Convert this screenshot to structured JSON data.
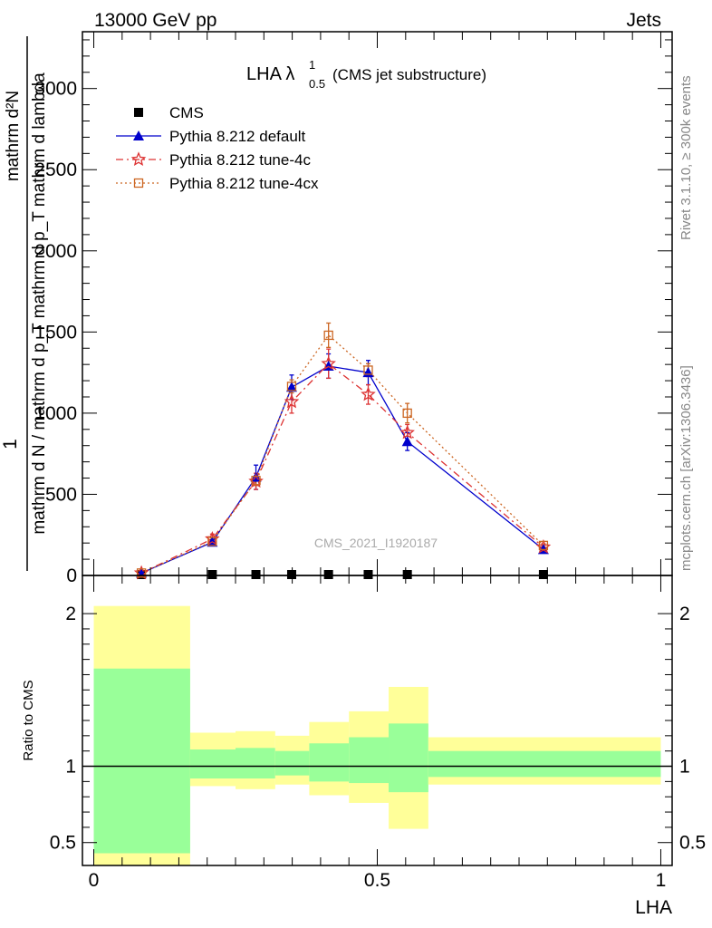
{
  "header": {
    "energy_label": "13000 GeV pp",
    "process_label": "Jets"
  },
  "side_labels": {
    "rivet": "Rivet 3.1.10, ≥ 300k events",
    "mcplots": "mcplots.cern.ch [arXiv:1306.3436]"
  },
  "watermark": "CMS_2021_I1920187",
  "colors": {
    "cms": "#000000",
    "default": "#0000cc",
    "tune4c": "#dd3333",
    "tune4cx": "#cc6622",
    "band_inner": "#99ff99",
    "band_outer": "#ffff99"
  },
  "chart_data": [
    {
      "type": "line",
      "title": "LHA λ",
      "title_sup": "1",
      "title_sub": "0.5",
      "title_suffix": "(CMS jet substructure)",
      "ylabel_top": "1",
      "ylabel_num": "mathrm d²N",
      "ylabel_den": "mathrm d N / mathrm d p_T mathrm d p_T mathrm d lambda",
      "xlim": [
        -0.02,
        1.02
      ],
      "ylim": [
        0,
        3350
      ],
      "y_ticks": [
        {
          "value": 0,
          "label": "0"
        },
        {
          "value": 500,
          "label": "500"
        },
        {
          "value": 1000,
          "label": "1000"
        },
        {
          "value": 1500,
          "label": "1500"
        },
        {
          "value": 2000,
          "label": "2000"
        },
        {
          "value": 2500,
          "label": "2500"
        },
        {
          "value": 3000,
          "label": "3000"
        }
      ],
      "legend": [
        {
          "key": "cms",
          "label": "CMS"
        },
        {
          "key": "default",
          "label": "Pythia 8.212 default"
        },
        {
          "key": "tune4c",
          "label": "Pythia 8.212 tune-4c"
        },
        {
          "key": "tune4cx",
          "label": "Pythia 8.212 tune-4cx"
        }
      ],
      "series": [
        {
          "name": "CMS",
          "key": "cms",
          "x": [
            0.084,
            0.209,
            0.286,
            0.349,
            0.414,
            0.484,
            0.553,
            0.793
          ],
          "values": [
            0,
            0,
            0,
            0,
            0,
            0,
            0,
            0
          ]
        },
        {
          "name": "Pythia 8.212 default",
          "key": "default",
          "x": [
            0.084,
            0.209,
            0.286,
            0.349,
            0.414,
            0.484,
            0.553,
            0.793
          ],
          "values": [
            15,
            205,
            605,
            1160,
            1290,
            1250,
            825,
            160
          ],
          "errors": [
            5,
            15,
            75,
            75,
            75,
            75,
            55,
            10
          ]
        },
        {
          "name": "Pythia 8.212 tune-4c",
          "key": "tune4c",
          "x": [
            0.084,
            0.209,
            0.286,
            0.349,
            0.414,
            0.484,
            0.553,
            0.793
          ],
          "values": [
            15,
            225,
            580,
            1070,
            1305,
            1115,
            880,
            175
          ],
          "errors": [
            5,
            30,
            50,
            70,
            90,
            60,
            50,
            10
          ]
        },
        {
          "name": "Pythia 8.212 tune-4cx",
          "key": "tune4cx",
          "x": [
            0.084,
            0.209,
            0.286,
            0.349,
            0.414,
            0.484,
            0.553,
            0.793
          ],
          "values": [
            15,
            210,
            585,
            1165,
            1480,
            1265,
            1000,
            185
          ],
          "errors": [
            5,
            20,
            30,
            40,
            75,
            40,
            60,
            10
          ]
        }
      ]
    },
    {
      "type": "area",
      "ylabel": "Ratio to CMS",
      "xlabel": "LHA",
      "xlim": [
        -0.02,
        1.02
      ],
      "ylim": [
        0.35,
        2.25
      ],
      "y_ticks": [
        {
          "value": 0.5,
          "label": "0.5"
        },
        {
          "value": 1,
          "label": "1"
        },
        {
          "value": 2,
          "label": "2"
        }
      ],
      "x_ticks": [
        {
          "value": 0,
          "label": "0"
        },
        {
          "value": 0.5,
          "label": "0.5"
        },
        {
          "value": 1,
          "label": "1"
        }
      ],
      "bins": [
        {
          "lo": 0.0,
          "hi": 0.17,
          "inner": [
            0.43,
            1.64
          ],
          "outer": [
            0.3,
            2.05
          ]
        },
        {
          "lo": 0.17,
          "hi": 0.25,
          "inner": [
            0.92,
            1.11
          ],
          "outer": [
            0.87,
            1.22
          ]
        },
        {
          "lo": 0.25,
          "hi": 0.32,
          "inner": [
            0.92,
            1.12
          ],
          "outer": [
            0.85,
            1.23
          ]
        },
        {
          "lo": 0.32,
          "hi": 0.38,
          "inner": [
            0.94,
            1.1
          ],
          "outer": [
            0.88,
            1.2
          ]
        },
        {
          "lo": 0.38,
          "hi": 0.45,
          "inner": [
            0.9,
            1.15
          ],
          "outer": [
            0.81,
            1.29
          ]
        },
        {
          "lo": 0.45,
          "hi": 0.52,
          "inner": [
            0.89,
            1.19
          ],
          "outer": [
            0.76,
            1.36
          ]
        },
        {
          "lo": 0.52,
          "hi": 0.59,
          "inner": [
            0.83,
            1.28
          ],
          "outer": [
            0.59,
            1.52
          ]
        },
        {
          "lo": 0.59,
          "hi": 1.0,
          "inner": [
            0.93,
            1.1
          ],
          "outer": [
            0.88,
            1.19
          ]
        }
      ],
      "reference": 1
    }
  ]
}
